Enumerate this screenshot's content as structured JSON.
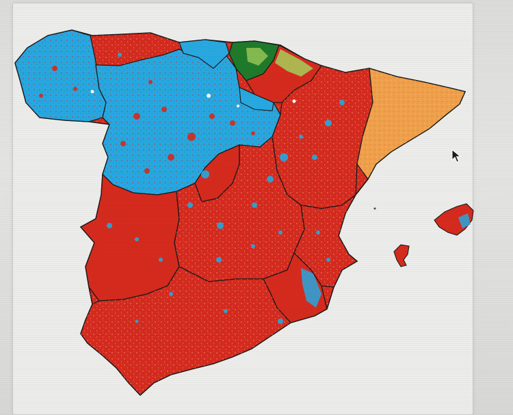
{
  "map": {
    "colors": {
      "background": "#ececea",
      "dominant_red": "#d52b1e",
      "blue": "#27a8e0",
      "orange": "#f0a14a",
      "dark_green": "#1f7a2c",
      "light_green": "#a7cf5b",
      "border": "#1a1a1a",
      "speckle": "#f4c0b8"
    },
    "regions": [
      {
        "id": "galicia",
        "fill": "blue"
      },
      {
        "id": "asturias",
        "fill": "red"
      },
      {
        "id": "cantabria",
        "fill": "blue"
      },
      {
        "id": "basque-country",
        "fill": "dark_green"
      },
      {
        "id": "navarre",
        "fill": "red"
      },
      {
        "id": "castile-leon",
        "fill": "blue"
      },
      {
        "id": "la-rioja",
        "fill": "blue"
      },
      {
        "id": "aragon",
        "fill": "red"
      },
      {
        "id": "catalonia",
        "fill": "orange"
      },
      {
        "id": "madrid",
        "fill": "red"
      },
      {
        "id": "castile-la-mancha",
        "fill": "red"
      },
      {
        "id": "valencia",
        "fill": "red"
      },
      {
        "id": "extremadura",
        "fill": "red"
      },
      {
        "id": "andalusia",
        "fill": "red"
      },
      {
        "id": "murcia",
        "fill": "red"
      },
      {
        "id": "balearic-islands",
        "fill": "red"
      }
    ]
  },
  "cursor": {
    "icon": "arrow-cursor-icon"
  }
}
